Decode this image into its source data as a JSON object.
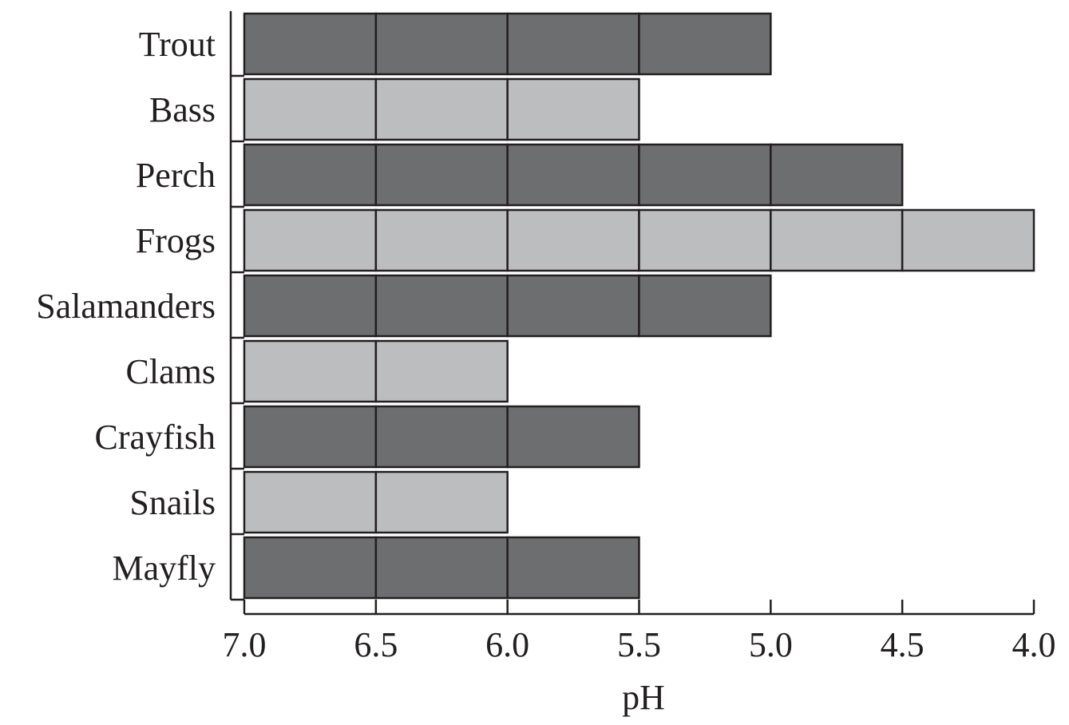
{
  "chart_data": {
    "type": "bar",
    "orientation": "horizontal",
    "categories": [
      "Trout",
      "Bass",
      "Perch",
      "Frogs",
      "Salamanders",
      "Clams",
      "Crayfish",
      "Snails",
      "Mayfly"
    ],
    "values": [
      5.0,
      5.5,
      4.5,
      4.0,
      5.0,
      6.0,
      5.5,
      6.0,
      5.5
    ],
    "bar_start": 7.0,
    "segment_step": 0.5,
    "xlabel": "pH",
    "ylabel": "",
    "title": "",
    "xlim": [
      7.0,
      4.0
    ],
    "x_reversed": true,
    "x_ticks": [
      "7.0",
      "6.5",
      "6.0",
      "5.5",
      "5.0",
      "4.5",
      "4.0"
    ],
    "grid": false,
    "legend": "none",
    "colors": {
      "dark": "#6d6e70",
      "light": "#bcbdbf",
      "outline": "#231f20"
    }
  }
}
